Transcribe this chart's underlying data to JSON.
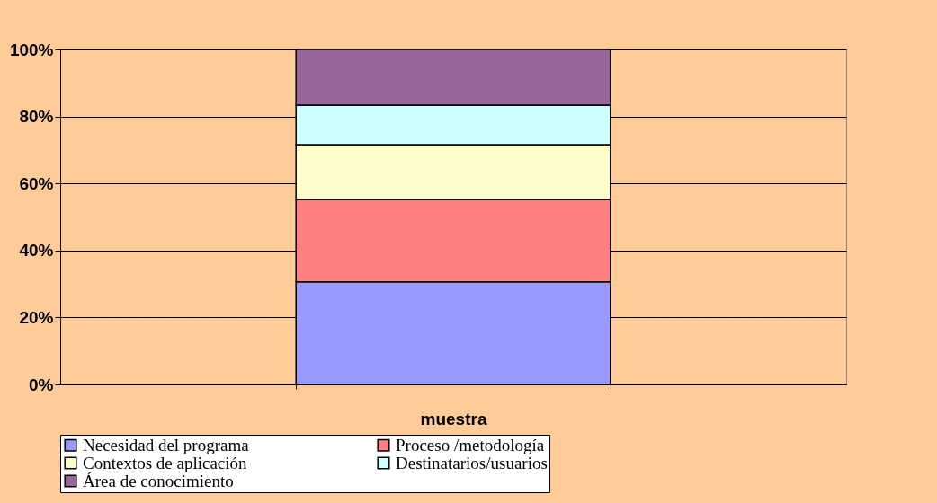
{
  "chart_data": {
    "type": "bar",
    "stacked": true,
    "xlabel": "muestra",
    "categories": [
      null
    ],
    "series": [
      {
        "name": "Necesidad del programa",
        "color": "#9999ff",
        "values": [
          30.6
        ]
      },
      {
        "name": "Proceso /metodología",
        "color": "#ff8080",
        "values": [
          24.6
        ]
      },
      {
        "name": "Contextos de aplicación",
        "color": "#ffffcc",
        "values": [
          16.4
        ]
      },
      {
        "name": "Destinatarios/usuarios",
        "color": "#ccffff",
        "values": [
          11.8
        ]
      },
      {
        "name": "Área de conocimiento",
        "color": "#996699",
        "values": [
          16.6
        ]
      }
    ],
    "ylim": [
      0,
      100
    ],
    "yticks": [
      {
        "value": 0,
        "label": "0%"
      },
      {
        "value": 20,
        "label": "20%"
      },
      {
        "value": 40,
        "label": "40%"
      },
      {
        "value": 60,
        "label": "60%"
      },
      {
        "value": 80,
        "label": "80%"
      },
      {
        "value": 100,
        "label": "100%"
      }
    ],
    "grid": "y",
    "legend": "bottom"
  }
}
